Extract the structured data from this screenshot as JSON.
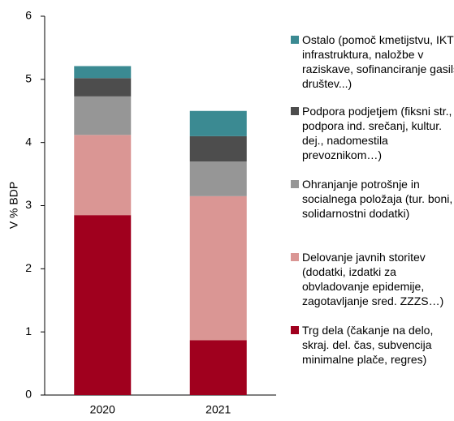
{
  "chart_data": {
    "type": "stacked_bar",
    "y_label": "V % BDP",
    "categories": [
      "2020",
      "2021"
    ],
    "series": [
      {
        "name": "Trg dela (čakanje na delo, skraj. del. čas, subvencija minimalne plače, regres)",
        "color": "#a0001e",
        "values": [
          2.85,
          0.87
        ]
      },
      {
        "name": "Delovanje javnih storitev (dodatki, izdatki za obvladovanje epidemije, zagotavljanje sred. ZZZS…)",
        "color": "#da9694",
        "values": [
          1.27,
          2.28
        ]
      },
      {
        "name": "Ohranjanje potrošnje in socialnega položaja (tur. boni, solidarnostni dodatki)",
        "color": "#969696",
        "values": [
          0.61,
          0.55
        ]
      },
      {
        "name": "Podpora podjetjem (fiksni str., podpora ind. srečanj, kultur. dej., nadomestila prevoznikom…)",
        "color": "#4d4d4d",
        "values": [
          0.29,
          0.4
        ]
      },
      {
        "name": "Ostalo (pomoč kmetijstvu, IKT infrastruktura, naložbe v raziskave, sofinanciranje gasils. društev...)",
        "color": "#3b8a92",
        "values": [
          0.19,
          0.4
        ]
      }
    ],
    "ylim": [
      0,
      6
    ],
    "yticks": [
      0,
      1,
      2,
      3,
      4,
      5,
      6
    ],
    "grid": false
  }
}
